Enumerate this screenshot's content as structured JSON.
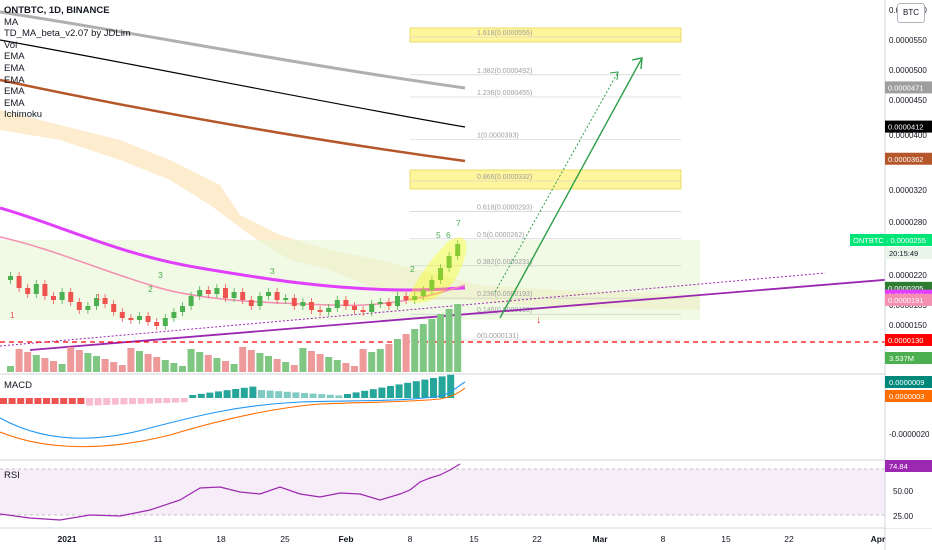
{
  "header": {
    "title": "ONTBTC, 1D, BINANCE",
    "indicators": [
      "MA",
      "TD_MA_beta_v2.07 by JDLim",
      "Vol",
      "EMA",
      "EMA",
      "EMA",
      "EMA",
      "EMA",
      "Ichimoku"
    ],
    "currency_badge": "BTC"
  },
  "chart_data": {
    "type": "candlestick",
    "symbol": "ONTBTC",
    "timeframe": "1D",
    "exchange": "BINANCE",
    "x_ticks": [
      "2021",
      "11",
      "18",
      "25",
      "Feb",
      "8",
      "15",
      "22",
      "Mar",
      "8",
      "15",
      "22",
      "Apr"
    ],
    "y_ticks": [
      "0.0000600",
      "0.0000550",
      "0.0000500",
      "0.0000450",
      "0.0000400",
      "0.0000360",
      "0.0000320",
      "0.0000280",
      "0.0000250",
      "0.0000220",
      "0.0000185",
      "0.0000150"
    ],
    "last_price": "0.0000255",
    "last_price_label": "ONTBTC · 0.0000255",
    "countdown": "20:15:49",
    "price_labels": [
      {
        "value": "0.0000471",
        "color": "#9e9e9e"
      },
      {
        "value": "0.0000412",
        "color": "#000000"
      },
      {
        "value": "0.0000362",
        "color": "#b5562b"
      },
      {
        "value": "0.0000205",
        "color": "#2e7d32"
      },
      {
        "value": "0.0000196",
        "color": "#e040fb"
      },
      {
        "value": "0.0000191",
        "color": "#f48fb1"
      },
      {
        "value": "0.0000130",
        "color": "#ff0000"
      }
    ],
    "volume_label": "3.537M",
    "fib_levels": [
      {
        "label": "1.618(0.0000555)",
        "value": 5.55e-05
      },
      {
        "label": "1.382(0.0000492)",
        "value": 4.92e-05
      },
      {
        "label": "1.236(0.0000455)",
        "value": 4.55e-05
      },
      {
        "label": "1(0.0000393)",
        "value": 3.93e-05
      },
      {
        "label": "0.866(0.0000332)",
        "value": 3.32e-05
      },
      {
        "label": "0.618(0.0000293)",
        "value": 2.93e-05
      },
      {
        "label": "0.5(0.0000262)",
        "value": 2.62e-05
      },
      {
        "label": "0.382(0.0000231)",
        "value": 2.31e-05
      },
      {
        "label": "0.236(0.0000193)",
        "value": 1.93e-05
      },
      {
        "label": "0.146(0.0000169)",
        "value": 1.69e-05
      },
      {
        "label": "0(0.0000131)",
        "value": 1.31e-05
      }
    ],
    "td_counts": [
      "5",
      "6",
      "7",
      "2",
      "3",
      "2",
      "3",
      "1",
      "1"
    ],
    "moving_averages": [
      {
        "color": "#b0b0b0",
        "description": "MA descending from top-left"
      },
      {
        "color": "#000000",
        "description": "EMA descending"
      },
      {
        "color": "#b5562b",
        "description": "EMA descending"
      },
      {
        "color": "#e040fb",
        "description": "EMA flattening near 0.0000196"
      },
      {
        "color": "#f48fb1",
        "description": "EMA near 0.0000191"
      }
    ],
    "macd": {
      "label": "MACD",
      "values": [
        "0.0000009",
        "0.0000003"
      ],
      "axis_tick": "-0.0000020",
      "colors": [
        "#00897b",
        "#ff6d00"
      ]
    },
    "rsi": {
      "label": "RSI",
      "value": "74.84",
      "axis_ticks": [
        "50.00",
        "25.00"
      ],
      "color": "#9c27b0"
    },
    "colors": {
      "up": "#4caf50",
      "down": "#ef5350",
      "fib_zone": "#fff59d",
      "target_arrow": "#2e7d32",
      "support_line": "#9c27b0",
      "stop_line": "#ff0000"
    }
  }
}
